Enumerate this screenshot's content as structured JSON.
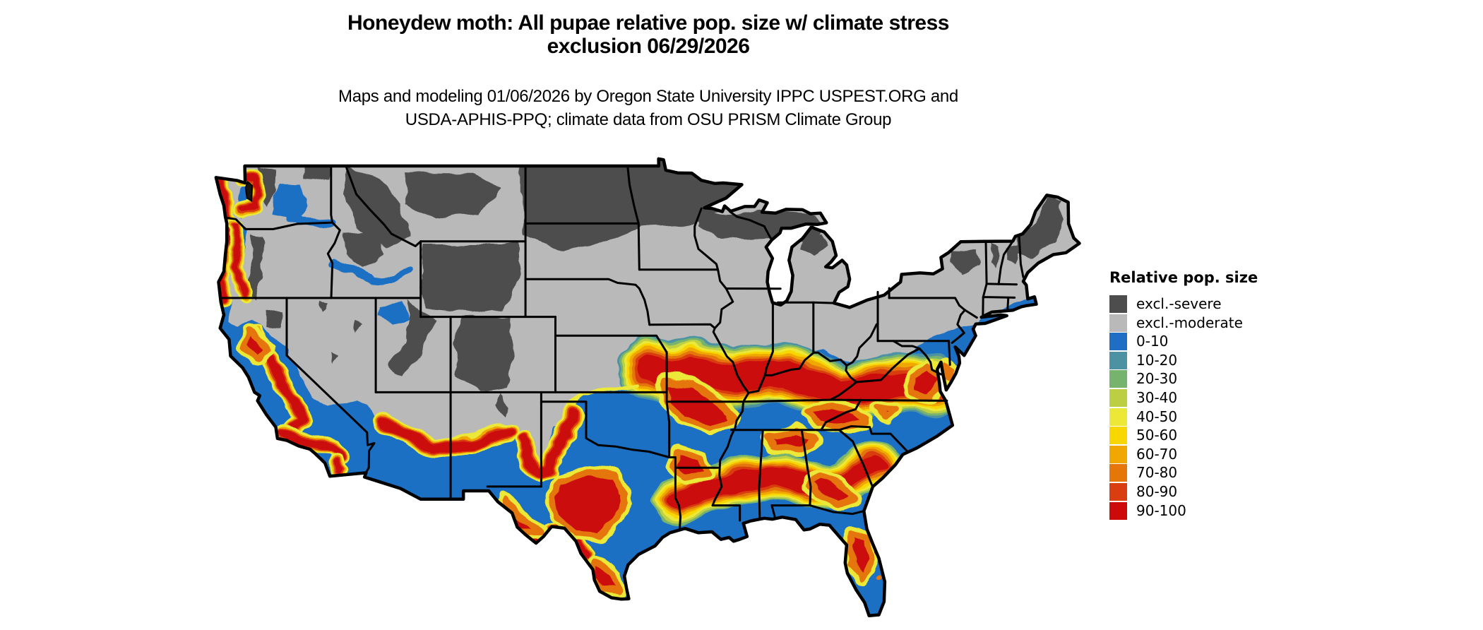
{
  "title": {
    "line1": "Honeydew moth: All pupae relative pop. size w/ climate stress",
    "line2": "exclusion 06/29/2026"
  },
  "subtitle": {
    "line1": "Maps and modeling 01/06/2026 by Oregon State University IPPC USPEST.ORG and",
    "line2": "USDA-APHIS-PPQ; climate data from OSU PRISM Climate Group"
  },
  "legend": {
    "title": "Relative pop. size",
    "entries": [
      {
        "key": "sev",
        "label": "excl.-severe",
        "color": "#4D4D4D"
      },
      {
        "key": "mod",
        "label": "excl.-moderate",
        "color": "#B9B9B9"
      },
      {
        "key": "b0",
        "label": "0-10",
        "color": "#1E6FC4"
      },
      {
        "key": "t10",
        "label": "10-20",
        "color": "#4D92A3"
      },
      {
        "key": "g20",
        "label": "20-30",
        "color": "#76B36E"
      },
      {
        "key": "yg30",
        "label": "30-40",
        "color": "#BCCF44"
      },
      {
        "key": "y40",
        "label": "40-50",
        "color": "#EBE838"
      },
      {
        "key": "gd50",
        "label": "50-60",
        "color": "#F8D600"
      },
      {
        "key": "o60",
        "label": "60-70",
        "color": "#F0A800"
      },
      {
        "key": "do70",
        "label": "70-80",
        "color": "#E5760A"
      },
      {
        "key": "ro80",
        "label": "80-90",
        "color": "#DA3E10"
      },
      {
        "key": "r90",
        "label": "90-100",
        "color": "#CC0A0A"
      }
    ]
  },
  "chart_data": {
    "type": "heatmap",
    "title": "Honeydew moth: All pupae relative pop. size w/ climate stress exclusion 06/29/2026",
    "legend_title": "Relative pop. size",
    "categories": [
      "excl.-severe",
      "excl.-moderate",
      "0-10",
      "10-20",
      "20-30",
      "30-40",
      "40-50",
      "50-60",
      "60-70",
      "70-80",
      "80-90",
      "90-100"
    ],
    "colors": [
      "#4D4D4D",
      "#B9B9B9",
      "#1E6FC4",
      "#4D92A3",
      "#76B36E",
      "#BCCF44",
      "#EBE838",
      "#F8D600",
      "#F0A800",
      "#E5760A",
      "#DA3E10",
      "#CC0A0A"
    ],
    "geographic_extent": "Continental United States with state boundaries",
    "regions_by_category": {
      "excl.-severe": "North Dakota, northern Minnesota/Wisconsin/Michigan, western Montana, Wyoming, Colorado Rockies, Utah mountains, central Idaho, Cascades, northern New England, Adirondacks",
      "excl.-moderate": "Pacific Northwest interior, Great Basin, Sierra, northern/central plains (SD, NE, KS, IA), Midwest, Ohio Valley north, Pennsylvania, New York, southern New England, Texas panhandle llano",
      "0-10": "Southern US lowlands: most of Texas, Gulf states, Southeast, Oklahoma, southern Arizona/New Mexico, California coast and deserts, mid-Atlantic coastal plain, Puget and Willamette lowlands, Columbia Basin",
      "90-100": "Band from eastern Kansas/Missouri through southern Illinois/Indiana, Kentucky, Tennessee and Virginia; Ozarks; Gulf band across Mississippi/Alabama/Georgia; central/west/south Texas; central Florida; California Central Valley; Pacific coastal strip",
      "intermediate 10-80": "Fringe transition zones surrounding the 90-100 bands and along the excluded/non-excluded boundary"
    }
  }
}
